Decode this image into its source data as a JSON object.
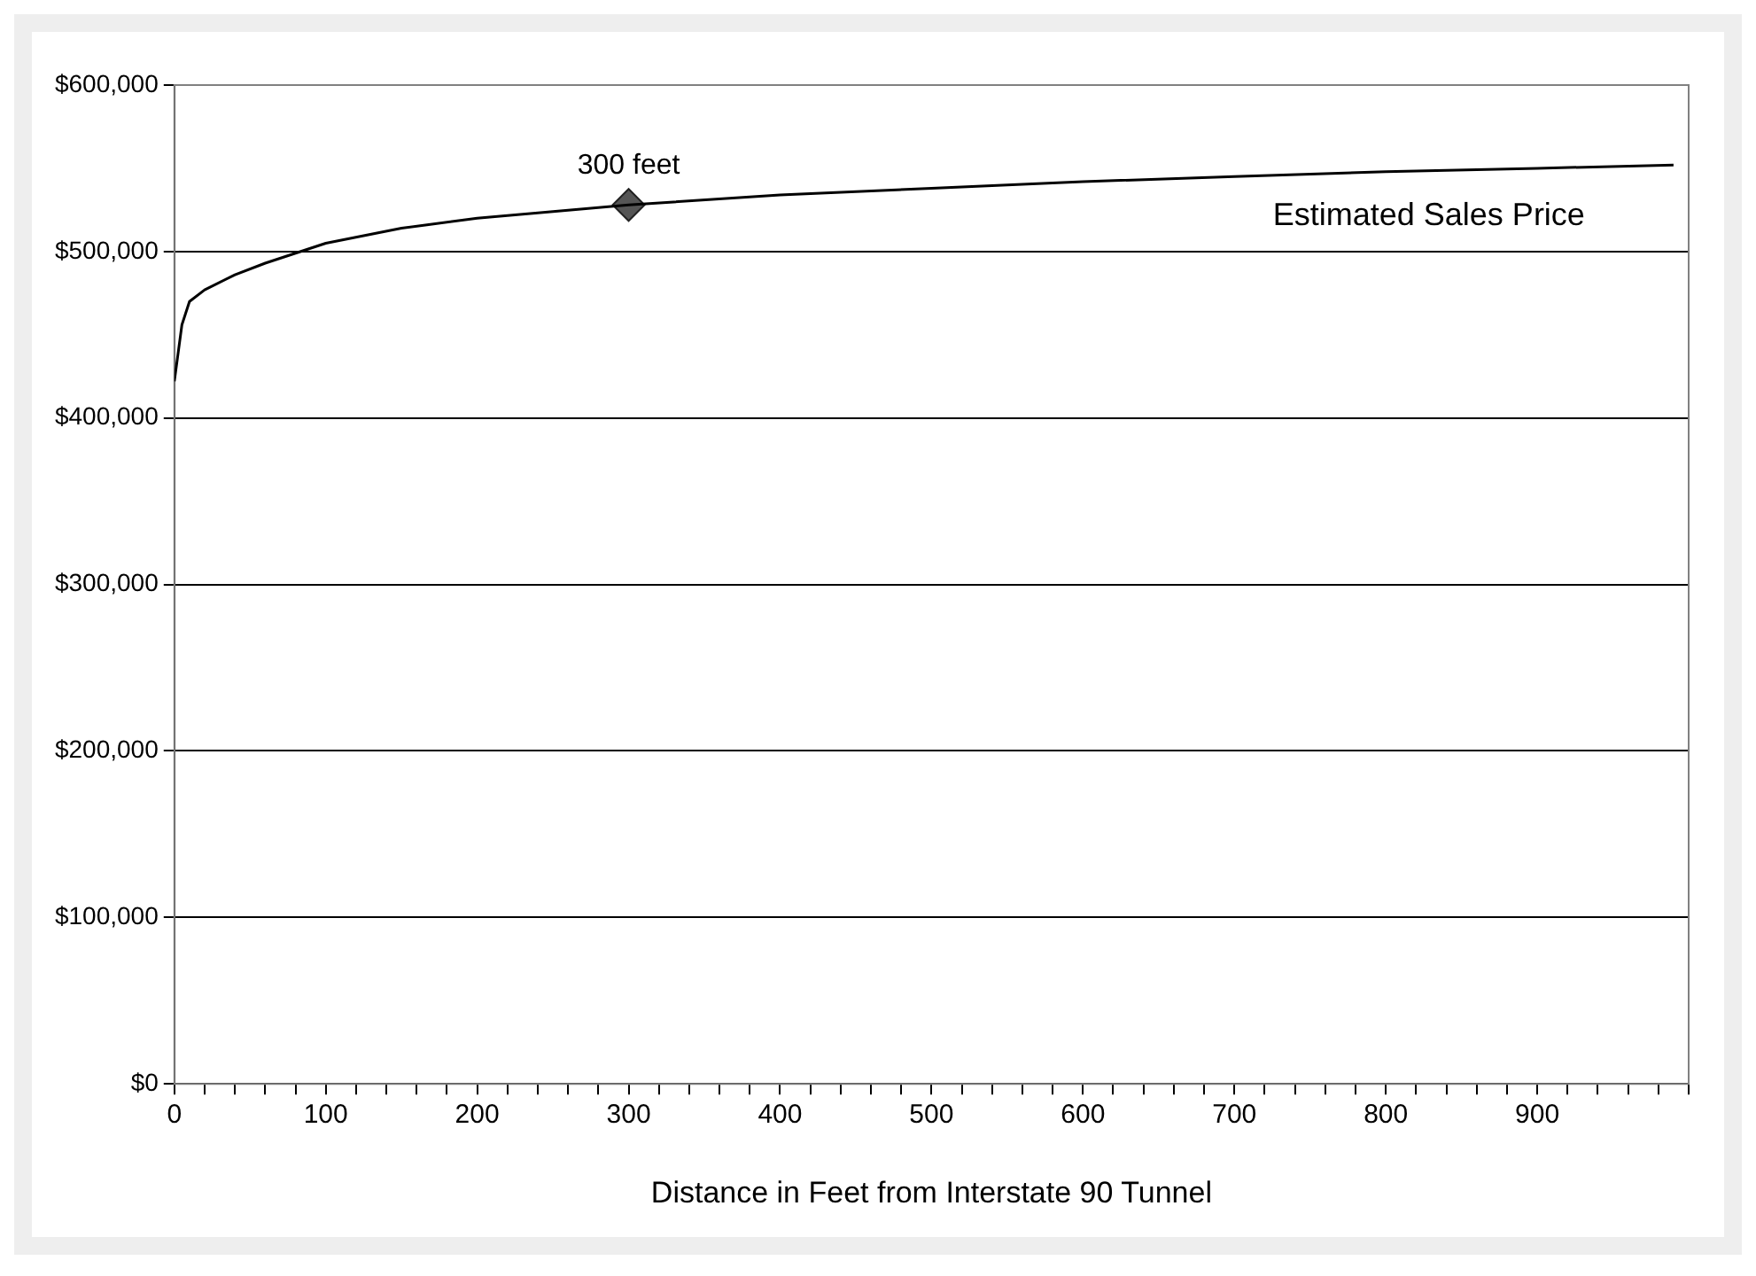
{
  "chart_data": {
    "type": "line",
    "xlabel": "Distance in Feet from Interstate 90 Tunnel",
    "xlim": [
      0,
      1000
    ],
    "xticks": [
      0,
      {
        "value": 20,
        "label": null
      },
      {
        "value": 40,
        "label": null
      },
      {
        "value": 60,
        "label": null
      },
      {
        "value": 80,
        "label": null
      },
      100,
      {
        "value": 120,
        "label": null
      },
      {
        "value": 140,
        "label": null
      },
      {
        "value": 160,
        "label": null
      },
      {
        "value": 180,
        "label": null
      },
      200,
      {
        "value": 220,
        "label": null
      },
      {
        "value": 240,
        "label": null
      },
      {
        "value": 260,
        "label": null
      },
      {
        "value": 280,
        "label": null
      },
      300,
      {
        "value": 320,
        "label": null
      },
      {
        "value": 340,
        "label": null
      },
      {
        "value": 360,
        "label": null
      },
      {
        "value": 380,
        "label": null
      },
      400,
      {
        "value": 420,
        "label": null
      },
      {
        "value": 440,
        "label": null
      },
      {
        "value": 460,
        "label": null
      },
      {
        "value": 480,
        "label": null
      },
      500,
      {
        "value": 520,
        "label": null
      },
      {
        "value": 540,
        "label": null
      },
      {
        "value": 560,
        "label": null
      },
      {
        "value": 580,
        "label": null
      },
      600,
      {
        "value": 620,
        "label": null
      },
      {
        "value": 640,
        "label": null
      },
      {
        "value": 660,
        "label": null
      },
      {
        "value": 680,
        "label": null
      },
      700,
      {
        "value": 720,
        "label": null
      },
      {
        "value": 740,
        "label": null
      },
      {
        "value": 760,
        "label": null
      },
      {
        "value": 780,
        "label": null
      },
      800,
      {
        "value": 820,
        "label": null
      },
      {
        "value": 840,
        "label": null
      },
      {
        "value": 860,
        "label": null
      },
      {
        "value": 880,
        "label": null
      },
      900,
      {
        "value": 920,
        "label": null
      },
      {
        "value": 940,
        "label": null
      },
      {
        "value": 960,
        "label": null
      },
      {
        "value": 980,
        "label": null
      },
      {
        "value": 1000,
        "label": null
      }
    ],
    "ylim": [
      0,
      600000
    ],
    "yticks": [
      {
        "value": 0,
        "label": "$0"
      },
      {
        "value": 100000,
        "label": "$100,000"
      },
      {
        "value": 200000,
        "label": "$200,000"
      },
      {
        "value": 300000,
        "label": "$300,000"
      },
      {
        "value": 400000,
        "label": "$400,000"
      },
      {
        "value": 500000,
        "label": "$500,000"
      },
      {
        "value": 600000,
        "label": "$600,000"
      }
    ],
    "grid": "y",
    "legend": false,
    "marker": "none",
    "line_style": "solid",
    "series": [
      {
        "name": "Estimated Sales Price",
        "color": "#000000",
        "x": [
          0,
          5,
          10,
          20,
          40,
          60,
          80,
          100,
          150,
          200,
          250,
          300,
          400,
          500,
          600,
          700,
          800,
          900,
          990
        ],
        "values": [
          422000,
          456000,
          470000,
          477000,
          486000,
          493000,
          499000,
          505000,
          514000,
          520000,
          524000,
          528000,
          534000,
          538000,
          542000,
          545000,
          548000,
          550000,
          552000
        ]
      },
      {
        "type": "scatter",
        "marker": "diamond",
        "color": "#555555",
        "x": [
          300
        ],
        "values": [
          528000
        ]
      }
    ],
    "annotations": [
      {
        "text": "300 feet",
        "x": 300,
        "y": 528000
      }
    ]
  }
}
